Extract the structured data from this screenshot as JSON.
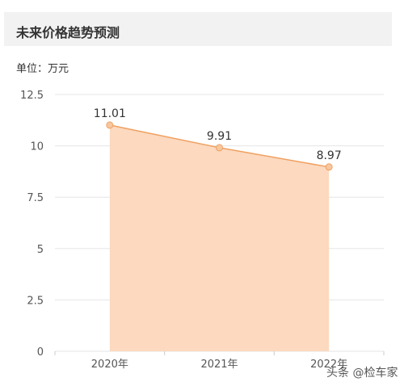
{
  "header": {
    "title": "未来价格趋势预测"
  },
  "unit_label": "单位：万元",
  "watermark": "头条 @检车家",
  "colors": {
    "area_fill": "#fcd9bf",
    "line": "#f0a060",
    "point": "#f7c79f",
    "grid": "#e5e5e5",
    "axis_text": "#555555",
    "label_text": "#333333",
    "header_bg": "#f2f2f2"
  },
  "chart_data": {
    "type": "area",
    "categories": [
      "2020年",
      "2021年",
      "2022年"
    ],
    "values": [
      11.01,
      9.91,
      8.97
    ],
    "value_labels": [
      "11.01",
      "9.91",
      "8.97"
    ],
    "yticks": [
      "0",
      "2.5",
      "5",
      "7.5",
      "10",
      "12.5"
    ],
    "ylim": [
      0,
      12.5
    ],
    "grid": true,
    "legend": "none"
  }
}
